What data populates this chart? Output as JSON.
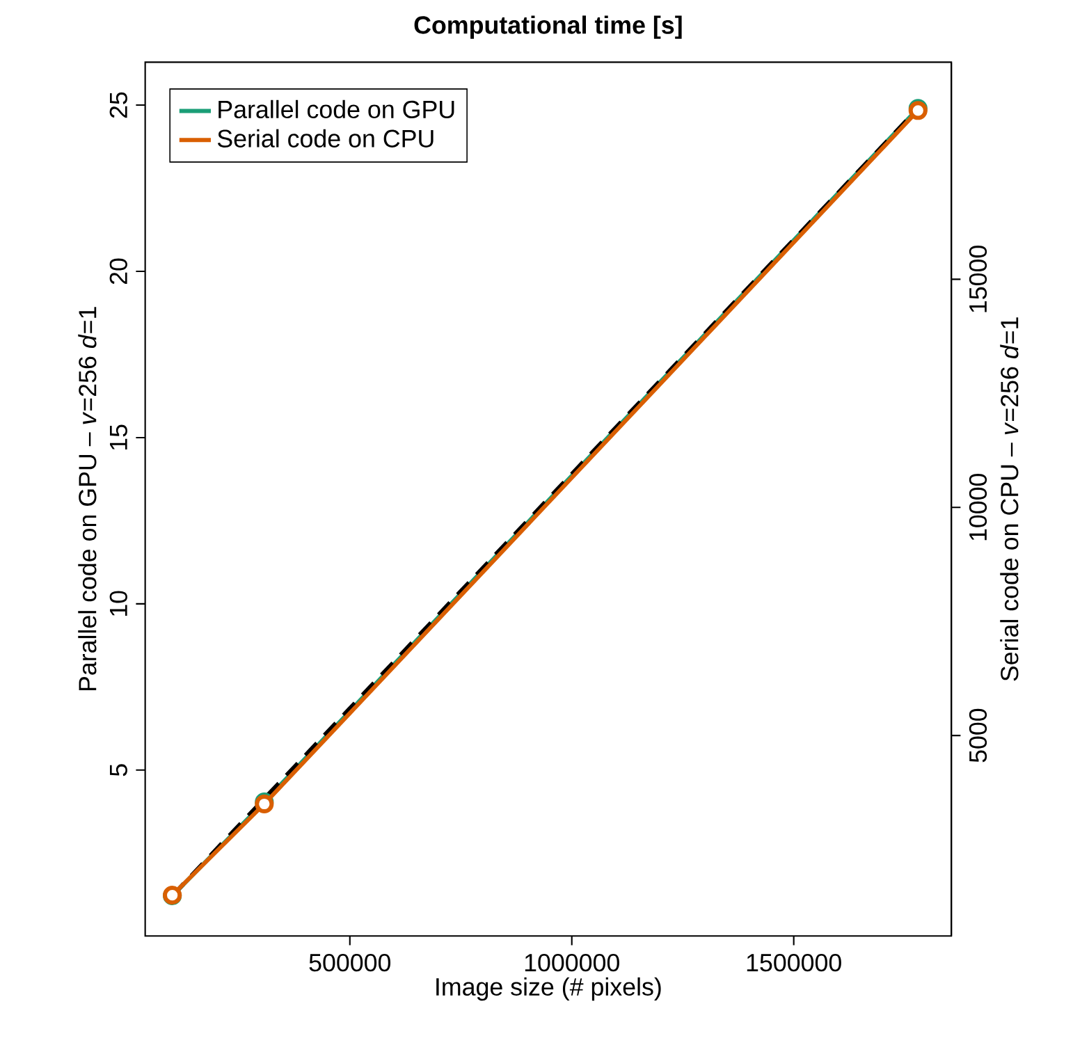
{
  "chart_data": {
    "type": "line",
    "title": "Computational time [s]",
    "xlabel": "Image size (# pixels)",
    "ylabel": "Parallel code on GPU – *v*=256 *d*=1",
    "y2label": "Serial code on CPU – *v*=256 *d*=1",
    "x": [
      100000,
      307200,
      1780000
    ],
    "series": [
      {
        "name": "Parallel code on GPU",
        "color": "#1b9e77",
        "values": [
          1.22,
          4.04,
          24.9
        ],
        "marker": "circle"
      },
      {
        "name": "Serial code on CPU",
        "color": "#d95f02",
        "values": [
          1500,
          3500,
          18700
        ],
        "axis": "y2",
        "marker": "circle"
      },
      {
        "color": "#000000",
        "x": [
          100000,
          1780000
        ],
        "values": [
          1.22,
          24.9
        ],
        "line_style": "dashed",
        "marker": "none"
      }
    ],
    "xlim": [
      38900,
      1855000
    ],
    "xticks": [
      500000,
      1000000,
      1500000
    ],
    "ylim": [
      0.01,
      26.29
    ],
    "yticks": [
      5,
      10,
      15,
      20,
      25
    ],
    "y2lim": [
      606,
      19758
    ],
    "y2ticks": [
      5000,
      10000,
      15000
    ],
    "legend": "top left"
  }
}
